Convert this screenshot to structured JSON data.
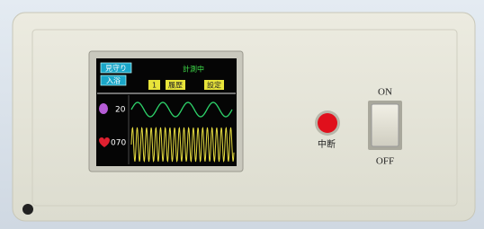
{
  "screen": {
    "buttons": [
      "見守り",
      "入浴"
    ],
    "status": "計測中",
    "tabs": [
      "1",
      "履歴",
      "設定"
    ],
    "respiration": "20",
    "heart_rate": "070"
  },
  "panel": {
    "stop_button": "中断",
    "switch_on": "ON",
    "switch_off": "OFF"
  }
}
